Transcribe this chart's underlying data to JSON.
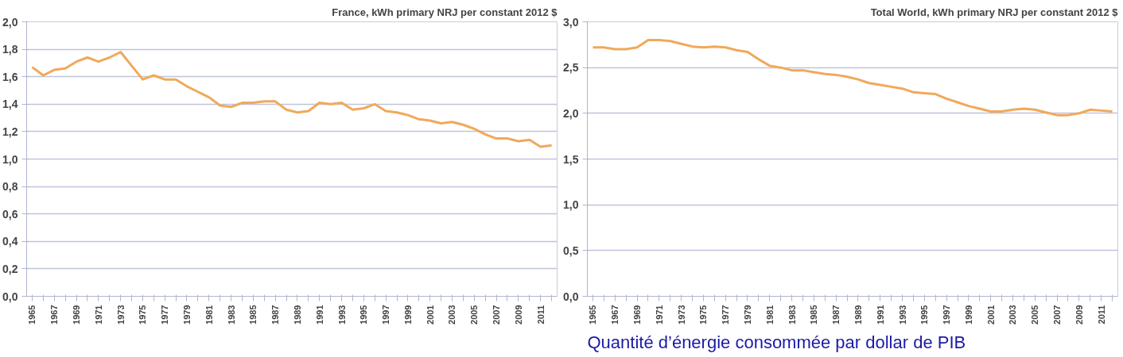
{
  "chart_data": [
    {
      "type": "line",
      "title": "France, kWh primary NRJ per constant 2012 $",
      "categories": [
        "1965",
        null,
        "1967",
        null,
        "1969",
        null,
        "1971",
        null,
        "1973",
        null,
        "1975",
        null,
        "1977",
        null,
        "1979",
        null,
        "1981",
        null,
        "1983",
        null,
        "1985",
        null,
        "1987",
        null,
        "1989",
        null,
        "1991",
        null,
        "1993",
        null,
        "1995",
        null,
        "1997",
        null,
        "1999",
        null,
        "2001",
        null,
        "2003",
        null,
        "2005",
        null,
        "2007",
        null,
        "2009",
        null,
        "2011",
        null
      ],
      "series": [
        {
          "color": "#f0a95a",
          "values": [
            1.67,
            1.61,
            1.65,
            1.66,
            1.71,
            1.74,
            1.71,
            1.74,
            1.78,
            1.68,
            1.58,
            1.61,
            1.58,
            1.58,
            1.53,
            1.49,
            1.45,
            1.39,
            1.38,
            1.41,
            1.41,
            1.42,
            1.42,
            1.36,
            1.34,
            1.35,
            1.41,
            1.4,
            1.41,
            1.36,
            1.37,
            1.4,
            1.35,
            1.34,
            1.32,
            1.29,
            1.28,
            1.26,
            1.27,
            1.25,
            1.22,
            1.18,
            1.15,
            1.15,
            1.13,
            1.14,
            1.09,
            1.1
          ]
        }
      ],
      "ylim": [
        0,
        2
      ],
      "yticks": [
        {
          "value": 0,
          "label": "0,0"
        },
        {
          "value": 0.2,
          "label": "0,2"
        },
        {
          "value": 0.4,
          "label": "0,4"
        },
        {
          "value": 0.6,
          "label": "0,6"
        },
        {
          "value": 0.8,
          "label": "0,8"
        },
        {
          "value": 1,
          "label": "1,0"
        },
        {
          "value": 1.2,
          "label": "1,2"
        },
        {
          "value": 1.4,
          "label": "1,4"
        },
        {
          "value": 1.6,
          "label": "1,6"
        },
        {
          "value": 1.8,
          "label": "1,8"
        },
        {
          "value": 2,
          "label": "2,0"
        }
      ],
      "grid": "y"
    },
    {
      "type": "line",
      "title": "Total World, kWh primary NRJ per constant 2012 $",
      "categories": [
        "1965",
        null,
        "1967",
        null,
        "1969",
        null,
        "1971",
        null,
        "1973",
        null,
        "1975",
        null,
        "1977",
        null,
        "1979",
        null,
        "1981",
        null,
        "1983",
        null,
        "1985",
        null,
        "1987",
        null,
        "1989",
        null,
        "1991",
        null,
        "1993",
        null,
        "1995",
        null,
        "1997",
        null,
        "1999",
        null,
        "2001",
        null,
        "2003",
        null,
        "2005",
        null,
        "2007",
        null,
        "2009",
        null,
        "2011",
        null
      ],
      "series": [
        {
          "color": "#f0a95a",
          "values": [
            2.72,
            2.72,
            2.7,
            2.7,
            2.72,
            2.8,
            2.8,
            2.79,
            2.76,
            2.73,
            2.72,
            2.73,
            2.72,
            2.69,
            2.67,
            2.59,
            2.52,
            2.5,
            2.47,
            2.47,
            2.45,
            2.43,
            2.42,
            2.4,
            2.37,
            2.33,
            2.31,
            2.29,
            2.27,
            2.23,
            2.22,
            2.21,
            2.16,
            2.12,
            2.08,
            2.05,
            2.02,
            2.02,
            2.04,
            2.05,
            2.04,
            2.01,
            1.98,
            1.98,
            2.0,
            2.04,
            2.03,
            2.02
          ]
        }
      ],
      "ylim": [
        0,
        3
      ],
      "yticks": [
        {
          "value": 0,
          "label": "0,0"
        },
        {
          "value": 0.5,
          "label": "0,5"
        },
        {
          "value": 1,
          "label": "1,0"
        },
        {
          "value": 1.5,
          "label": "1,5"
        },
        {
          "value": 2,
          "label": "2,0"
        },
        {
          "value": 2.5,
          "label": "2,5"
        },
        {
          "value": 3,
          "label": "3,0"
        }
      ],
      "grid": "y",
      "annotations": [
        "Quantité d’énergie consommée par dollar de PIB"
      ]
    }
  ]
}
